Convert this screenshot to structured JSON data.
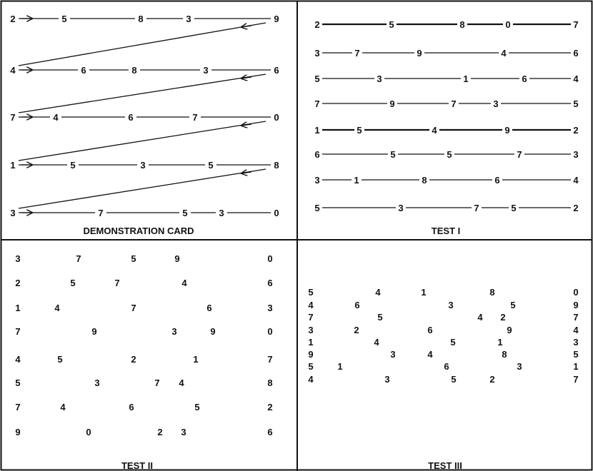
{
  "demo": {
    "caption": "DEMONSTRATION CARD",
    "rows": [
      [
        "2",
        "5",
        "8",
        "3",
        "9"
      ],
      [
        "4",
        "6",
        "8",
        "3",
        "6"
      ],
      [
        "7",
        "4",
        "6",
        "7",
        "0"
      ],
      [
        "1",
        "5",
        "3",
        "5",
        "8"
      ],
      [
        "3",
        "7",
        "5",
        "3",
        "0"
      ]
    ]
  },
  "test1": {
    "caption": "TEST I",
    "rows": [
      [
        "2",
        "5",
        "8",
        "0",
        "7"
      ],
      [
        "3",
        "7",
        "9",
        "4",
        "6"
      ],
      [
        "5",
        "3",
        "1",
        "6",
        "4"
      ],
      [
        "7",
        "9",
        "7",
        "3",
        "5"
      ],
      [
        "1",
        "5",
        "4",
        "9",
        "2"
      ],
      [
        "6",
        "5",
        "5",
        "7",
        "3"
      ],
      [
        "3",
        "1",
        "8",
        "6",
        "4"
      ],
      [
        "5",
        "3",
        "7",
        "5",
        "2"
      ]
    ]
  },
  "test2": {
    "caption": "TEST II",
    "rows": [
      [
        "3",
        "7",
        "5",
        "9",
        "0"
      ],
      [
        "2",
        "5",
        "7",
        "4",
        "6"
      ],
      [
        "1",
        "4",
        "7",
        "6",
        "3"
      ],
      [
        "7",
        "9",
        "3",
        "9",
        "0"
      ],
      [
        "4",
        "5",
        "2",
        "1",
        "7"
      ],
      [
        "5",
        "3",
        "7",
        "4",
        "8"
      ],
      [
        "7",
        "4",
        "6",
        "5",
        "2"
      ],
      [
        "9",
        "0",
        "2",
        "3",
        "6"
      ]
    ]
  },
  "test3": {
    "caption": "TEST III",
    "rows": [
      [
        "5",
        "4",
        "1",
        "8",
        "0"
      ],
      [
        "4",
        "6",
        "3",
        "5",
        "9"
      ],
      [
        "7",
        "5",
        "4",
        "2",
        "7"
      ],
      [
        "3",
        "2",
        "6",
        "9",
        "4"
      ],
      [
        "1",
        "4",
        "5",
        "1",
        "3"
      ],
      [
        "9",
        "3",
        "4",
        "8",
        "5"
      ],
      [
        "5",
        "1",
        "6",
        "3",
        "1"
      ],
      [
        "4",
        "3",
        "5",
        "2",
        "7"
      ]
    ]
  }
}
